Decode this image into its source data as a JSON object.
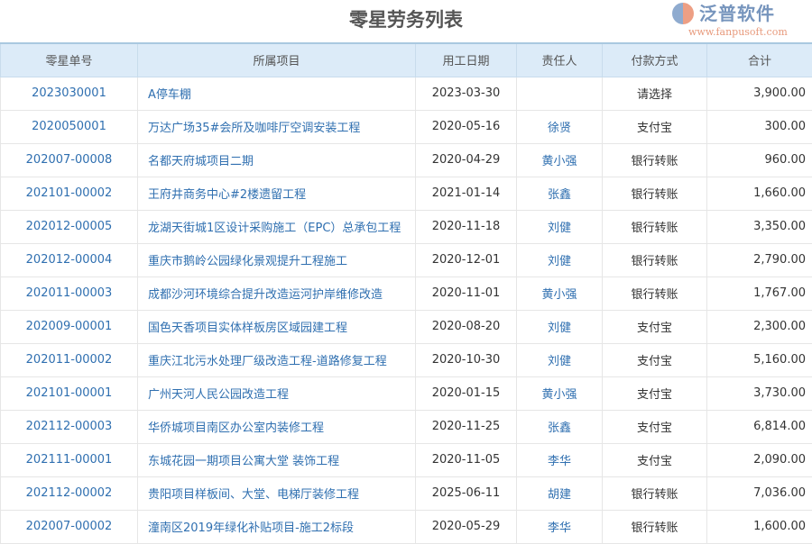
{
  "title": "零星劳务列表",
  "columns": [
    "零星单号",
    "所属项目",
    "用工日期",
    "责任人",
    "付款方式",
    "合计"
  ],
  "rows": [
    [
      "2023030001",
      "A停车棚",
      "2023-03-30",
      "",
      "请选择",
      "3,900.00"
    ],
    [
      "2020050001",
      "万达广场35#会所及咖啡厅空调安装工程",
      "2020-05-16",
      "徐贤",
      "支付宝",
      "300.00"
    ],
    [
      "202007-00008",
      "名都天府城项目二期",
      "2020-04-29",
      "黄小强",
      "银行转账",
      "960.00"
    ],
    [
      "202101-00002",
      "王府井商务中心#2楼遗留工程",
      "2021-01-14",
      "张鑫",
      "银行转账",
      "1,660.00"
    ],
    [
      "202012-00005",
      "龙湖天街城1区设计采购施工（EPC）总承包工程",
      "2020-11-18",
      "刘健",
      "银行转账",
      "3,350.00"
    ],
    [
      "202012-00004",
      "重庆市鹅岭公园绿化景观提升工程施工",
      "2020-12-01",
      "刘健",
      "银行转账",
      "2,790.00"
    ],
    [
      "202011-00003",
      "成都沙河环境综合提升改造运河护岸维修改造",
      "2020-11-01",
      "黄小强",
      "银行转账",
      "1,767.00"
    ],
    [
      "202009-00001",
      "国色天香项目实体样板房区域园建工程",
      "2020-08-20",
      "刘健",
      "支付宝",
      "2,300.00"
    ],
    [
      "202011-00002",
      "重庆江北污水处理厂级改造工程-道路修复工程",
      "2020-10-30",
      "刘健",
      "支付宝",
      "5,160.00"
    ],
    [
      "202101-00001",
      "广州天河人民公园改造工程",
      "2020-01-15",
      "黄小强",
      "支付宝",
      "3,730.00"
    ],
    [
      "202112-00003",
      "华侨城项目南区办公室内装修工程",
      "2020-11-25",
      "张鑫",
      "支付宝",
      "6,814.00"
    ],
    [
      "202111-00001",
      "东城花园一期项目公寓大堂 装饰工程",
      "2020-11-05",
      "李华",
      "支付宝",
      "2,090.00"
    ],
    [
      "202112-00002",
      "贵阳项目样板间、大堂、电梯厅装修工程",
      "2025-06-11",
      "胡建",
      "银行转账",
      "7,036.00"
    ],
    [
      "202007-00002",
      "潼南区2019年绿化补贴项目-施工2标段",
      "2020-05-29",
      "李华",
      "银行转账",
      "1,600.00"
    ]
  ],
  "watermark": {
    "name": "泛普软件",
    "url": "www.fanpusoft.com"
  }
}
